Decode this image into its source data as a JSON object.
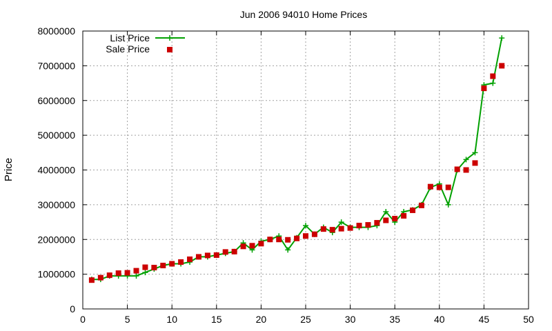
{
  "chart_data": {
    "type": "line",
    "title": "Jun 2006 94010 Home Prices",
    "xlabel": "",
    "ylabel": "Price",
    "xlim": [
      0,
      50
    ],
    "ylim": [
      0,
      8000000
    ],
    "xticks": [
      "0",
      "5",
      "10",
      "15",
      "20",
      "25",
      "30",
      "35",
      "40",
      "45",
      "50"
    ],
    "yticks": [
      "0",
      "1000000",
      "2000000",
      "3000000",
      "4000000",
      "5000000",
      "6000000",
      "7000000",
      "8000000"
    ],
    "grid": true,
    "legend_position": "top-left",
    "series": [
      {
        "name": "List Price",
        "style": "line+cross",
        "color": "#00a000",
        "x": [
          1,
          2,
          3,
          4,
          5,
          6,
          7,
          8,
          9,
          10,
          11,
          12,
          13,
          14,
          15,
          16,
          17,
          18,
          19,
          20,
          21,
          22,
          23,
          24,
          25,
          26,
          27,
          28,
          29,
          30,
          31,
          32,
          33,
          34,
          35,
          36,
          37,
          38,
          39,
          40,
          41,
          42,
          43,
          44,
          45,
          46,
          47
        ],
        "y": [
          850000,
          850000,
          950000,
          950000,
          950000,
          950000,
          1050000,
          1150000,
          1250000,
          1300000,
          1300000,
          1350000,
          1500000,
          1500000,
          1550000,
          1600000,
          1650000,
          1900000,
          1700000,
          1950000,
          2000000,
          2100000,
          1700000,
          2050000,
          2400000,
          2150000,
          2350000,
          2200000,
          2500000,
          2350000,
          2350000,
          2350000,
          2400000,
          2800000,
          2500000,
          2800000,
          2850000,
          3000000,
          3500000,
          3600000,
          3000000,
          4000000,
          4300000,
          4500000,
          6450000,
          6500000,
          7800000
        ]
      },
      {
        "name": "Sale Price",
        "style": "square",
        "color": "#cc0000",
        "x": [
          1,
          2,
          3,
          4,
          5,
          6,
          7,
          8,
          9,
          10,
          11,
          12,
          13,
          14,
          15,
          16,
          17,
          18,
          19,
          20,
          21,
          22,
          23,
          24,
          25,
          26,
          27,
          28,
          29,
          30,
          31,
          32,
          33,
          34,
          35,
          36,
          37,
          38,
          39,
          40,
          41,
          42,
          43,
          44,
          45,
          46,
          47
        ],
        "y": [
          830000,
          900000,
          970000,
          1030000,
          1040000,
          1100000,
          1200000,
          1190000,
          1250000,
          1300000,
          1350000,
          1430000,
          1500000,
          1540000,
          1550000,
          1640000,
          1650000,
          1800000,
          1820000,
          1880000,
          2000000,
          2000000,
          1990000,
          2030000,
          2100000,
          2150000,
          2300000,
          2280000,
          2310000,
          2330000,
          2400000,
          2420000,
          2480000,
          2550000,
          2600000,
          2680000,
          2840000,
          2980000,
          3520000,
          3500000,
          3500000,
          4020000,
          4000000,
          4200000,
          6350000,
          6700000,
          7000000
        ]
      }
    ]
  }
}
